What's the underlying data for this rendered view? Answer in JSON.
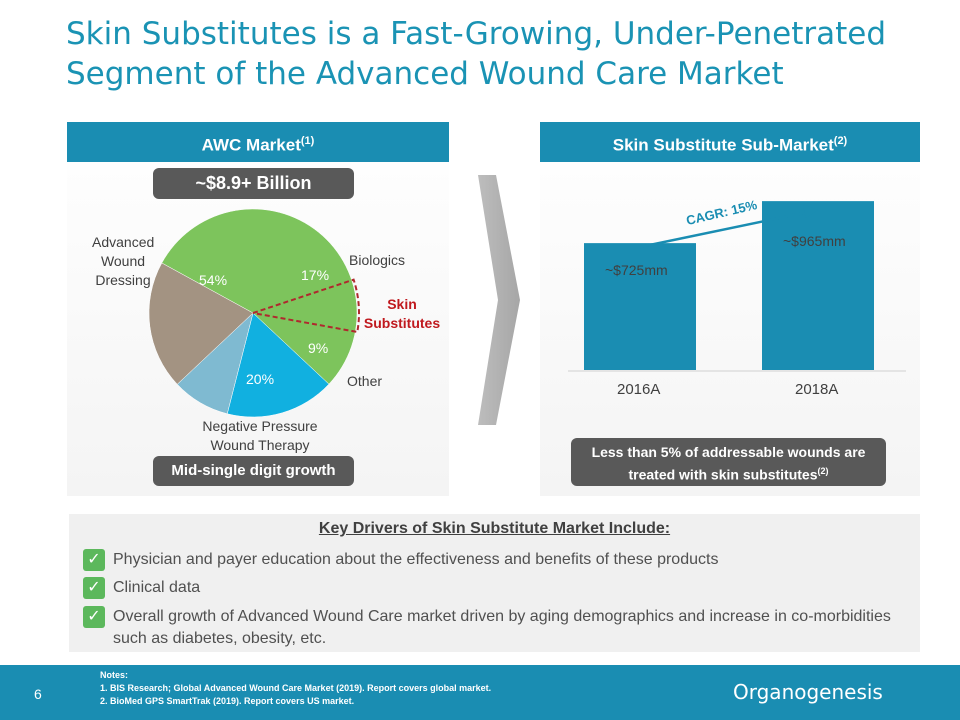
{
  "title": {
    "line1": "Skin Substitutes is a Fast-Growing, Under-Penetrated",
    "line2": "Segment of the Advanced Wound Care Market"
  },
  "left_panel": {
    "header": "AWC Market",
    "header_sup": "(1)",
    "total": "~$8.9+ Billion",
    "growth": "Mid-single digit growth",
    "labels": {
      "dressing": [
        "Advanced",
        "Wound",
        "Dressing"
      ],
      "biologics": "Biologics",
      "skin": [
        "Skin",
        "Substitutes"
      ],
      "other": "Other",
      "npwt": [
        "Negative Pressure",
        "Wound Therapy"
      ]
    },
    "colors": {
      "dressing": "#7dc45c",
      "biologics": "#11b0e0",
      "other": "#7fbad1",
      "npwt": "#a39382"
    }
  },
  "right_panel": {
    "header": "Skin Substitute Sub-Market",
    "header_sup": "(2)",
    "cagr": "CAGR: 15%",
    "note": "Less than 5% of addressable wounds are treated with skin substitutes",
    "note_sup": "(2)"
  },
  "chart_data": [
    {
      "type": "pie",
      "slices": [
        {
          "name": "Advanced Wound Dressing",
          "value": 54,
          "label": "54%"
        },
        {
          "name": "Biologics",
          "value": 17,
          "label": "17%"
        },
        {
          "name": "Other",
          "value": 9,
          "label": "9%"
        },
        {
          "name": "Negative Pressure Wound Therapy",
          "value": 20,
          "label": "20%"
        }
      ]
    },
    {
      "type": "bar",
      "categories": [
        "2016A",
        "2018A"
      ],
      "values": [
        725,
        965
      ],
      "value_labels": [
        "~$725mm",
        "~$965mm"
      ],
      "ylim": [
        0,
        1200
      ]
    }
  ],
  "drivers": {
    "title": "Key Drivers of Skin Substitute Market Include:",
    "items": [
      "Physician and payer education about the effectiveness and benefits of these products",
      "Clinical data",
      "Overall growth of Advanced Wound Care market driven by aging demographics and increase in co-morbidities such as diabetes, obesity, etc."
    ],
    "check_glyph": "✓"
  },
  "footer": {
    "page": "6",
    "notes_title": "Notes:",
    "notes": [
      "1.    BIS Research; Global Advanced Wound Care Market (2019). Report covers global market.",
      "2.    BioMed GPS SmartTrak (2019). Report covers US market."
    ],
    "logo": "Organogenesis"
  }
}
